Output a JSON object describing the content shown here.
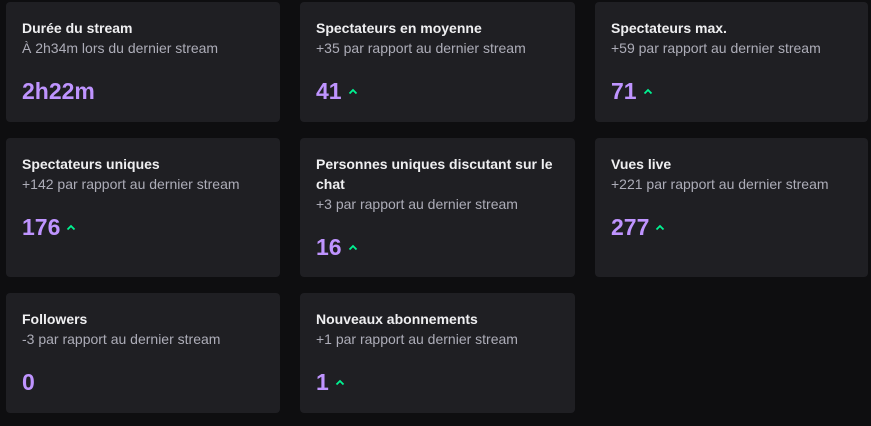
{
  "cards": [
    {
      "title": "Durée du stream",
      "subtitle": "À 2h34m lors du dernier stream",
      "value": "2h22m"
    },
    {
      "title": "Spectateurs en moyenne",
      "subtitle": "+35 par rapport au dernier stream",
      "value": "41",
      "arrow": "up"
    },
    {
      "title": "Spectateurs max.",
      "subtitle": "+59 par rapport au dernier stream",
      "value": "71",
      "arrow": "up"
    },
    {
      "title": "Spectateurs uniques",
      "subtitle": "+142 par rapport au dernier stream",
      "value": "176",
      "arrow": "up"
    },
    {
      "title": "Personnes uniques discutant sur le chat",
      "subtitle": "+3 par rapport au dernier stream",
      "value": "16",
      "arrow": "up"
    },
    {
      "title": "Vues live",
      "subtitle": "+221 par rapport au dernier stream",
      "value": "277",
      "arrow": "up"
    },
    {
      "title": "Followers",
      "subtitle": "-3 par rapport au dernier stream",
      "value": "0"
    },
    {
      "title": "Nouveaux abonnements",
      "subtitle": "+1 par rapport au dernier stream",
      "value": "1",
      "arrow": "up"
    }
  ]
}
